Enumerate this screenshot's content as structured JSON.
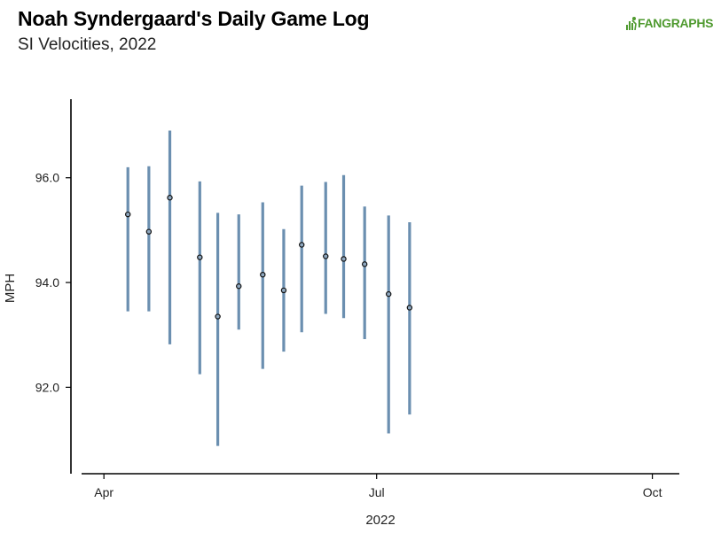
{
  "header": {
    "title": "Noah Syndergaard's Daily Game Log",
    "subtitle": "SI Velocities, 2022",
    "logo_text": "FANGRAPHS"
  },
  "colors": {
    "range_bar": "#6b8fb0",
    "point_fill": "#8fa8c0",
    "point_stroke": "#111111",
    "axis": "#000000",
    "logo": "#4f9a2f"
  },
  "chart_data": {
    "type": "scatter",
    "title": "Noah Syndergaard's Daily Game Log",
    "subtitle": "SI Velocities, 2022",
    "xlabel": "2022",
    "ylabel": "MPH",
    "xlim": [
      "2022-03-21",
      "2022-10-10"
    ],
    "ylim": [
      90.35,
      97.5
    ],
    "x_ticks": [
      {
        "date": "2022-04-01",
        "label": "Apr"
      },
      {
        "date": "2022-07-01",
        "label": "Jul"
      },
      {
        "date": "2022-10-01",
        "label": "Oct"
      }
    ],
    "y_ticks": [
      {
        "value": 92.0,
        "label": "92.0"
      },
      {
        "value": 94.0,
        "label": "94.0"
      },
      {
        "value": 96.0,
        "label": "96.0"
      }
    ],
    "grid": false,
    "legend": "none",
    "series": [
      {
        "points": [
          {
            "x": "2022-04-09",
            "avg": 95.3,
            "min": 93.45,
            "max": 96.2
          },
          {
            "x": "2022-04-16",
            "avg": 94.97,
            "min": 93.45,
            "max": 96.22
          },
          {
            "x": "2022-04-23",
            "avg": 95.62,
            "min": 92.82,
            "max": 96.9
          },
          {
            "x": "2022-05-03",
            "avg": 94.48,
            "min": 92.25,
            "max": 95.93
          },
          {
            "x": "2022-05-09",
            "avg": 93.35,
            "min": 90.88,
            "max": 95.33
          },
          {
            "x": "2022-05-16",
            "avg": 93.93,
            "min": 93.1,
            "max": 95.3
          },
          {
            "x": "2022-05-24",
            "avg": 94.15,
            "min": 92.35,
            "max": 95.53
          },
          {
            "x": "2022-05-31",
            "avg": 93.85,
            "min": 92.68,
            "max": 95.02
          },
          {
            "x": "2022-06-06",
            "avg": 94.72,
            "min": 93.05,
            "max": 95.85
          },
          {
            "x": "2022-06-14",
            "avg": 94.5,
            "min": 93.4,
            "max": 95.92
          },
          {
            "x": "2022-06-20",
            "avg": 94.45,
            "min": 93.32,
            "max": 96.05
          },
          {
            "x": "2022-06-27",
            "avg": 94.35,
            "min": 92.92,
            "max": 95.45
          },
          {
            "x": "2022-07-05",
            "avg": 93.78,
            "min": 91.12,
            "max": 95.28
          },
          {
            "x": "2022-07-12",
            "avg": 93.52,
            "min": 91.48,
            "max": 95.15
          }
        ]
      }
    ]
  }
}
